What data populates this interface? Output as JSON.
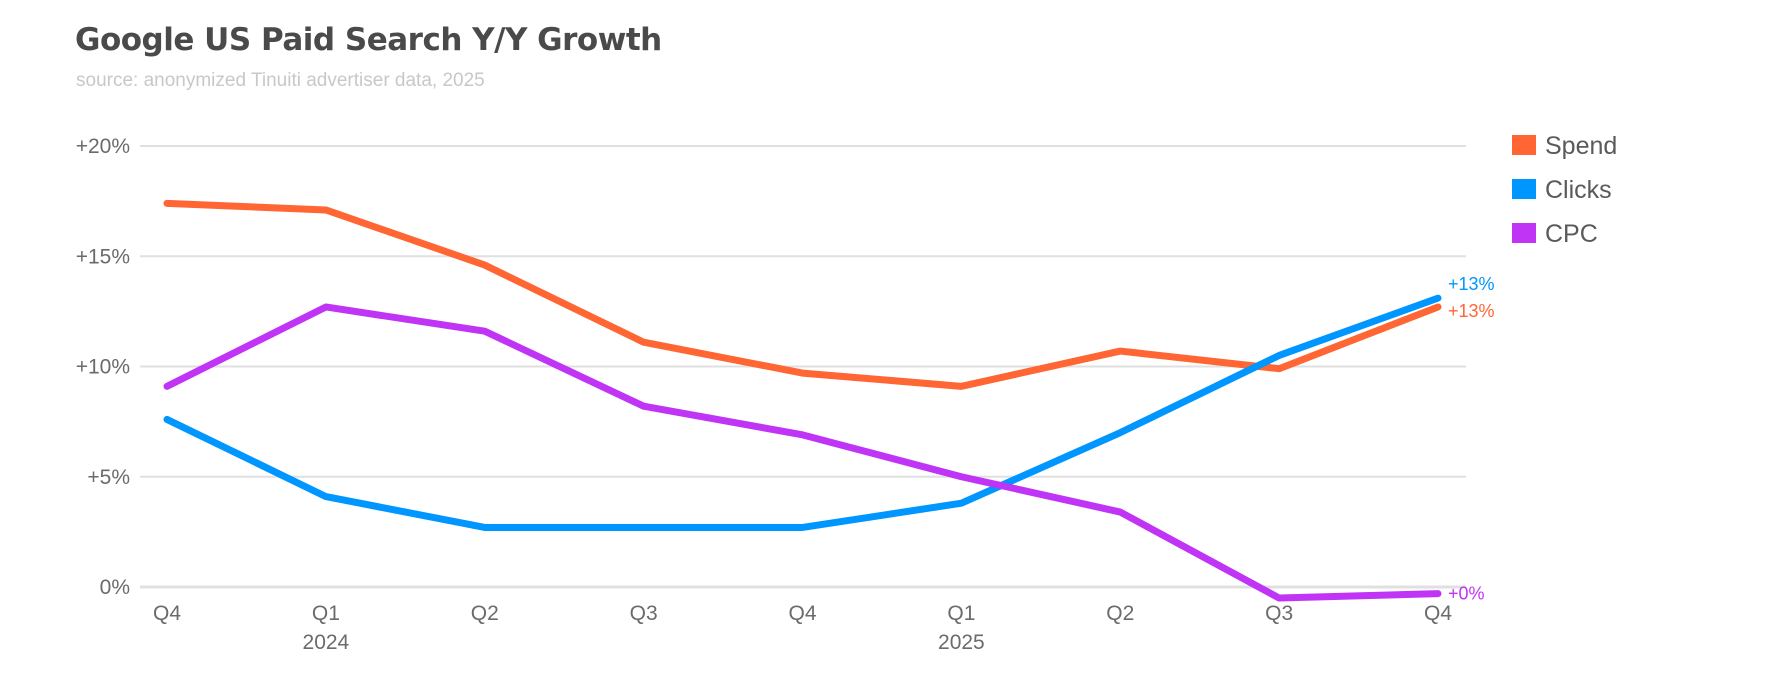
{
  "header": {
    "title": "Google US Paid Search Y/Y Growth",
    "subtitle": "source: anonymized Tinuiti advertiser data, 2025"
  },
  "chart_data": {
    "type": "line",
    "title": "Google US Paid Search Y/Y Growth",
    "subtitle": "source: anonymized Tinuiti advertiser data, 2025",
    "xlabel": "",
    "ylabel": "",
    "categories": [
      "Q4 2023",
      "Q1 2024",
      "Q2 2024",
      "Q3 2024",
      "Q4 2024",
      "Q1 2025",
      "Q2 2025",
      "Q3 2025",
      "Q4 2025"
    ],
    "x_tick_labels": [
      {
        "quarter": "Q4",
        "year": ""
      },
      {
        "quarter": "Q1",
        "year": "2024"
      },
      {
        "quarter": "Q2",
        "year": ""
      },
      {
        "quarter": "Q3",
        "year": ""
      },
      {
        "quarter": "Q4",
        "year": ""
      },
      {
        "quarter": "Q1",
        "year": "2025"
      },
      {
        "quarter": "Q2",
        "year": ""
      },
      {
        "quarter": "Q3",
        "year": ""
      },
      {
        "quarter": "Q4",
        "year": ""
      }
    ],
    "y_ticks": [
      0,
      5,
      10,
      15,
      20
    ],
    "y_tick_labels": [
      "0%",
      "+5%",
      "+10%",
      "+15%",
      "+20%"
    ],
    "ylim": [
      0,
      20
    ],
    "grid": true,
    "legend_position": "right",
    "series": [
      {
        "name": "Spend",
        "color": "#ff6633",
        "values": [
          17.4,
          17.1,
          14.6,
          11.1,
          9.7,
          9.1,
          10.7,
          9.9,
          12.7
        ],
        "end_label": "+13%"
      },
      {
        "name": "Clicks",
        "color": "#0096ff",
        "values": [
          7.6,
          4.1,
          2.7,
          2.7,
          2.7,
          3.8,
          7.0,
          10.5,
          13.1
        ],
        "end_label": "+13%"
      },
      {
        "name": "CPC",
        "color": "#c034f5",
        "values": [
          9.1,
          12.7,
          11.6,
          8.2,
          6.9,
          5.0,
          3.4,
          -0.5,
          -0.3
        ],
        "end_label": "+0%"
      }
    ]
  }
}
